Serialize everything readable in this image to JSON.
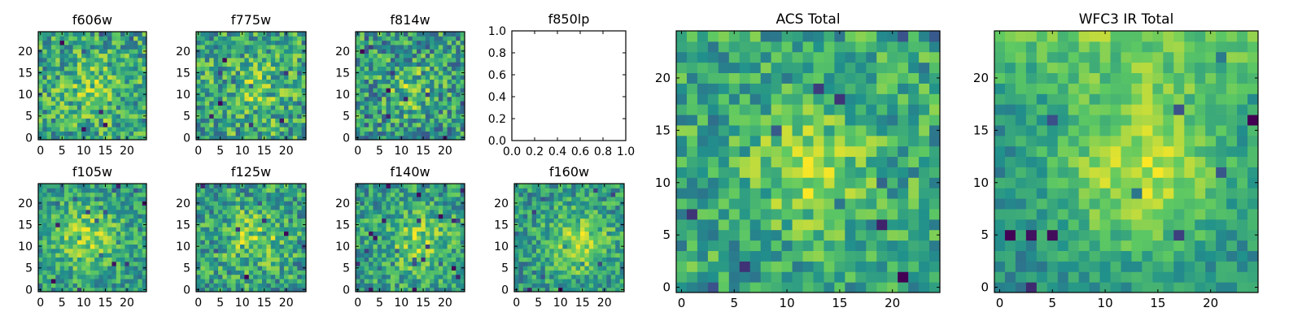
{
  "figure": {
    "description_free": true
  },
  "colors": {
    "colormap": [
      "#440154",
      "#3b528b",
      "#21918c",
      "#5ec962",
      "#fde725"
    ],
    "axis": "#000000",
    "background": "#ffffff"
  },
  "chart_data": [
    {
      "id": "f606w",
      "type": "heatmap",
      "title": "f606w",
      "grid_size": 25,
      "xlim": [
        0,
        24
      ],
      "ylim": [
        0,
        24
      ],
      "xticks": [
        "0",
        "5",
        "10",
        "15",
        "20"
      ],
      "yticks": [
        "0",
        "5",
        "10",
        "15",
        "20"
      ],
      "pattern": {
        "seed": 11,
        "base": 0.55,
        "noise": 0.36,
        "blob": 0.22,
        "cx": 12.5,
        "cy": 11,
        "sigma": 5
      }
    },
    {
      "id": "f775w",
      "type": "heatmap",
      "title": "f775w",
      "grid_size": 25,
      "xlim": [
        0,
        24
      ],
      "ylim": [
        0,
        24
      ],
      "xticks": [
        "0",
        "5",
        "10",
        "15",
        "20"
      ],
      "yticks": [
        "0",
        "5",
        "10",
        "15",
        "20"
      ],
      "pattern": {
        "seed": 23,
        "base": 0.58,
        "noise": 0.36,
        "blob": 0.18,
        "cx": 13,
        "cy": 11,
        "sigma": 5
      }
    },
    {
      "id": "f814w",
      "type": "heatmap",
      "title": "f814w",
      "grid_size": 25,
      "xlim": [
        0,
        24
      ],
      "ylim": [
        0,
        24
      ],
      "xticks": [
        "0",
        "5",
        "10",
        "15",
        "20"
      ],
      "yticks": [
        "0",
        "5",
        "10",
        "15",
        "20"
      ],
      "pattern": {
        "seed": 37,
        "base": 0.52,
        "noise": 0.38,
        "blob": 0.25,
        "cx": 12.5,
        "cy": 11,
        "sigma": 4
      }
    },
    {
      "id": "f850lp",
      "type": "empty",
      "title": "f850lp",
      "xlim": [
        0,
        1
      ],
      "ylim": [
        0,
        1
      ],
      "xticks": [
        "0.0",
        "0.2",
        "0.4",
        "0.6",
        "0.8",
        "1.0"
      ],
      "yticks": [
        "0.0",
        "0.2",
        "0.4",
        "0.6",
        "0.8",
        "1.0"
      ]
    },
    {
      "id": "f105w",
      "type": "heatmap",
      "title": "f105w",
      "grid_size": 25,
      "xlim": [
        0,
        24
      ],
      "ylim": [
        0,
        24
      ],
      "xticks": [
        "0",
        "5",
        "10",
        "15",
        "20"
      ],
      "yticks": [
        "0",
        "5",
        "10",
        "15",
        "20"
      ],
      "pattern": {
        "seed": 41,
        "base": 0.55,
        "noise": 0.22,
        "blob": 0.28,
        "cx": 11,
        "cy": 12,
        "sigma": 6
      }
    },
    {
      "id": "f125w",
      "type": "heatmap",
      "title": "f125w",
      "grid_size": 25,
      "xlim": [
        0,
        24
      ],
      "ylim": [
        0,
        24
      ],
      "xticks": [
        "0",
        "5",
        "10",
        "15",
        "20"
      ],
      "yticks": [
        "0",
        "5",
        "10",
        "15",
        "20"
      ],
      "pattern": {
        "seed": 53,
        "base": 0.55,
        "noise": 0.28,
        "blob": 0.25,
        "cx": 13,
        "cy": 12,
        "sigma": 5
      }
    },
    {
      "id": "f140w",
      "type": "heatmap",
      "title": "f140w",
      "grid_size": 25,
      "xlim": [
        0,
        24
      ],
      "ylim": [
        0,
        24
      ],
      "xticks": [
        "0",
        "5",
        "10",
        "15",
        "20"
      ],
      "yticks": [
        "0",
        "5",
        "10",
        "15",
        "20"
      ],
      "pattern": {
        "seed": 67,
        "base": 0.56,
        "noise": 0.28,
        "blob": 0.28,
        "cx": 14,
        "cy": 11,
        "sigma": 5
      }
    },
    {
      "id": "f160w",
      "type": "heatmap",
      "title": "f160w",
      "grid_size": 25,
      "xlim": [
        0,
        24
      ],
      "ylim": [
        0,
        24
      ],
      "xticks": [
        "0",
        "5",
        "10",
        "15",
        "20"
      ],
      "yticks": [
        "0",
        "5",
        "10",
        "15",
        "20"
      ],
      "pattern": {
        "seed": 79,
        "base": 0.5,
        "noise": 0.25,
        "blob": 0.35,
        "cx": 14,
        "cy": 11,
        "sigma": 5
      }
    },
    {
      "id": "acs-total",
      "type": "heatmap",
      "title": "ACS Total",
      "grid_size": 25,
      "xlim": [
        0,
        24
      ],
      "ylim": [
        0,
        24
      ],
      "xticks": [
        "0",
        "5",
        "10",
        "15",
        "20"
      ],
      "yticks": [
        "0",
        "5",
        "10",
        "15",
        "20"
      ],
      "pattern": {
        "seed": 91,
        "base": 0.58,
        "noise": 0.26,
        "blob": 0.3,
        "cx": 12.5,
        "cy": 11.5,
        "sigma": 3.5
      }
    },
    {
      "id": "wfc3-ir-total",
      "type": "heatmap",
      "title": "WFC3 IR Total",
      "grid_size": 25,
      "xlim": [
        0,
        24
      ],
      "ylim": [
        0,
        24
      ],
      "xticks": [
        "0",
        "5",
        "10",
        "15",
        "20"
      ],
      "yticks": [
        "0",
        "5",
        "10",
        "15",
        "20"
      ],
      "pattern": {
        "seed": 103,
        "base": 0.45,
        "noise": 0.14,
        "blob": 0.42,
        "cx": 13.5,
        "cy": 11.5,
        "sigma": 6,
        "topglow": 0.25
      }
    }
  ]
}
